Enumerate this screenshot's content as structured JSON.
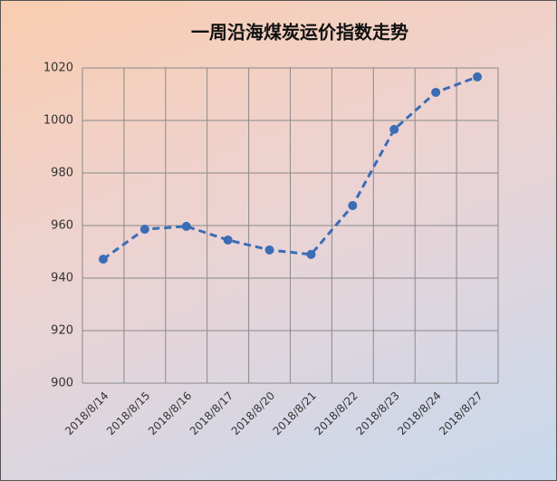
{
  "chart_data": {
    "type": "line",
    "title": "一周沿海煤炭运价指数走势",
    "categories": [
      "2018/8/14",
      "2018/8/15",
      "2018/8/16",
      "2018/8/17",
      "2018/8/20",
      "2018/8/21",
      "2018/8/22",
      "2018/8/23",
      "2018/8/24",
      "2018/8/27"
    ],
    "values": [
      947.2,
      958.6,
      959.7,
      954.5,
      950.7,
      949.0,
      967.6,
      996.6,
      1010.7,
      1016.6
    ],
    "color": "#3a6db5",
    "ylim": [
      900,
      1020
    ],
    "yticks": [
      900,
      920,
      940,
      960,
      980,
      1000,
      1020
    ],
    "grid": true
  }
}
